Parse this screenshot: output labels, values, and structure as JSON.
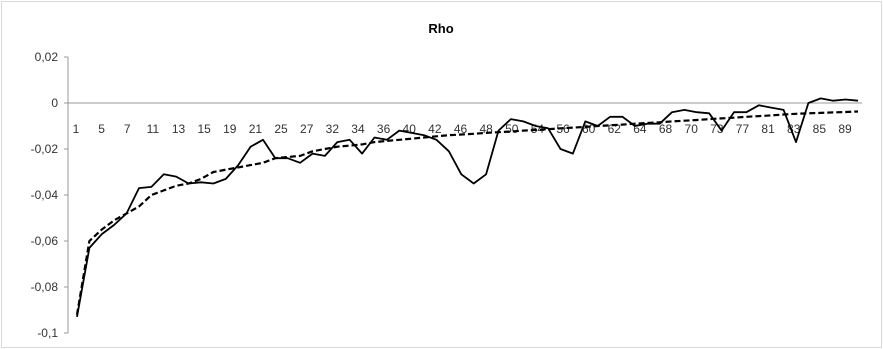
{
  "chart_data": {
    "type": "line",
    "title": "Rho",
    "xlabel": "",
    "ylabel": "",
    "ylim": [
      -0.1,
      0.02
    ],
    "y_ticks": [
      "0,02",
      "0",
      "-0,02",
      "-0,04",
      "-0,06",
      "-0,08",
      "-0,1"
    ],
    "x_tick_labels": [
      "1",
      "5",
      "7",
      "11",
      "13",
      "15",
      "19",
      "21",
      "25",
      "27",
      "32",
      "34",
      "36",
      "40",
      "42",
      "46",
      "48",
      "50",
      "54",
      "56",
      "60",
      "62",
      "64",
      "68",
      "70",
      "73",
      "77",
      "81",
      "83",
      "85",
      "89"
    ],
    "grid": false,
    "legend": "none",
    "series": [
      {
        "style": "solid",
        "color": "#000000",
        "values": [
          -0.093,
          -0.063,
          -0.057,
          -0.053,
          -0.048,
          -0.037,
          -0.0365,
          -0.031,
          -0.032,
          -0.035,
          -0.0345,
          -0.035,
          -0.033,
          -0.027,
          -0.019,
          -0.016,
          -0.024,
          -0.024,
          -0.026,
          -0.022,
          -0.023,
          -0.017,
          -0.016,
          -0.022,
          -0.015,
          -0.016,
          -0.012,
          -0.013,
          -0.014,
          -0.016,
          -0.021,
          -0.031,
          -0.035,
          -0.031,
          -0.012,
          -0.007,
          -0.008,
          -0.01,
          -0.011,
          -0.02,
          -0.022,
          -0.008,
          -0.01,
          -0.006,
          -0.006,
          -0.01,
          -0.009,
          -0.009,
          -0.004,
          -0.003,
          -0.004,
          -0.0045,
          -0.012,
          -0.004,
          -0.004,
          -0.001,
          -0.002,
          -0.003,
          -0.017,
          0.0,
          0.002,
          0.001,
          0.0015,
          0.001
        ]
      },
      {
        "style": "dashed",
        "color": "#000000",
        "values": [
          -0.092,
          -0.06,
          -0.055,
          -0.051,
          -0.048,
          -0.045,
          -0.04,
          -0.038,
          -0.036,
          -0.035,
          -0.033,
          -0.03,
          -0.029,
          -0.028,
          -0.027,
          -0.026,
          -0.024,
          -0.0235,
          -0.023,
          -0.021,
          -0.02,
          -0.019,
          -0.0185,
          -0.018,
          -0.017,
          -0.0165,
          -0.016,
          -0.0155,
          -0.015,
          -0.0145,
          -0.014,
          -0.0137,
          -0.0134,
          -0.013,
          -0.0127,
          -0.0124,
          -0.012,
          -0.0117,
          -0.0114,
          -0.011,
          -0.0107,
          -0.0104,
          -0.01,
          -0.0097,
          -0.0094,
          -0.009,
          -0.0087,
          -0.0084,
          -0.008,
          -0.0077,
          -0.0074,
          -0.007,
          -0.0067,
          -0.0064,
          -0.006,
          -0.0057,
          -0.0054,
          -0.005,
          -0.0047,
          -0.0045,
          -0.0043,
          -0.0041,
          -0.0039,
          -0.0037
        ]
      }
    ]
  }
}
